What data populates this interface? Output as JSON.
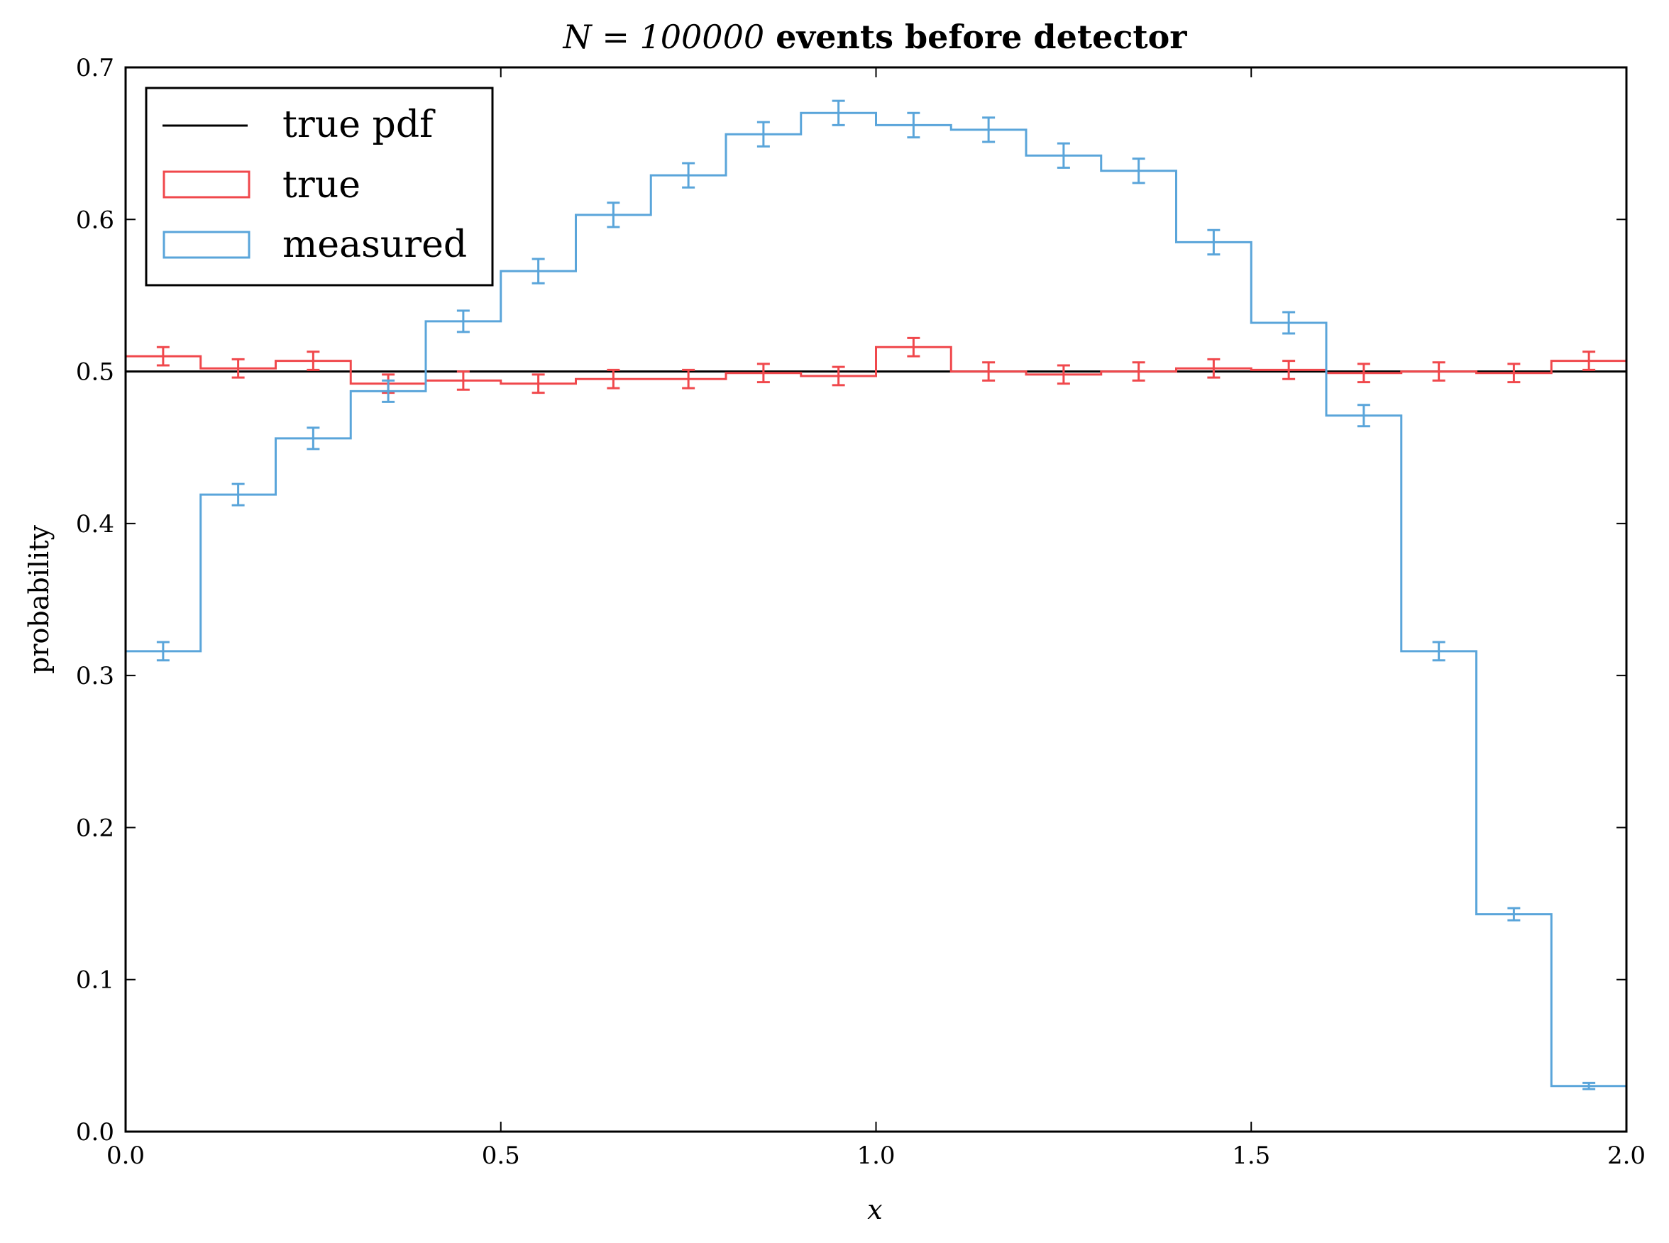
{
  "chart_data": {
    "type": "histogram-step",
    "title_prefix": "N = 100000",
    "title_suffix": " events before detector",
    "xlabel": "x",
    "ylabel": "probability",
    "xlim": [
      0.0,
      2.0
    ],
    "ylim": [
      0.0,
      0.7
    ],
    "xticks": [
      "0.0",
      "0.5",
      "1.0",
      "1.5",
      "2.0"
    ],
    "yticks": [
      "0.0",
      "0.1",
      "0.2",
      "0.3",
      "0.4",
      "0.5",
      "0.6",
      "0.7"
    ],
    "bin_edges": [
      0.0,
      0.1,
      0.2,
      0.3,
      0.4,
      0.5,
      0.6,
      0.7,
      0.8,
      0.9,
      1.0,
      1.1,
      1.2,
      1.3,
      1.4,
      1.5,
      1.6,
      1.7,
      1.8,
      1.9,
      2.0
    ],
    "true_pdf": {
      "name": "true pdf",
      "value": 0.5,
      "color": "#000000"
    },
    "series": [
      {
        "name": "true",
        "color": "#f0484c",
        "values": [
          0.51,
          0.502,
          0.507,
          0.492,
          0.494,
          0.492,
          0.495,
          0.495,
          0.499,
          0.497,
          0.516,
          0.5,
          0.498,
          0.5,
          0.502,
          0.501,
          0.499,
          0.5,
          0.499,
          0.507
        ],
        "errors": [
          0.006,
          0.006,
          0.006,
          0.006,
          0.006,
          0.006,
          0.006,
          0.006,
          0.006,
          0.006,
          0.006,
          0.006,
          0.006,
          0.006,
          0.006,
          0.006,
          0.006,
          0.006,
          0.006,
          0.006
        ]
      },
      {
        "name": "measured",
        "color": "#5aa5da",
        "values": [
          0.316,
          0.419,
          0.456,
          0.487,
          0.533,
          0.566,
          0.603,
          0.629,
          0.656,
          0.67,
          0.662,
          0.659,
          0.642,
          0.632,
          0.585,
          0.532,
          0.471,
          0.316,
          0.143,
          0.03
        ],
        "errors": [
          0.006,
          0.007,
          0.007,
          0.007,
          0.007,
          0.008,
          0.008,
          0.008,
          0.008,
          0.008,
          0.008,
          0.008,
          0.008,
          0.008,
          0.008,
          0.007,
          0.007,
          0.006,
          0.004,
          0.002
        ]
      }
    ],
    "legend": [
      "true pdf",
      "true",
      "measured"
    ],
    "legend_position": "top-left"
  }
}
